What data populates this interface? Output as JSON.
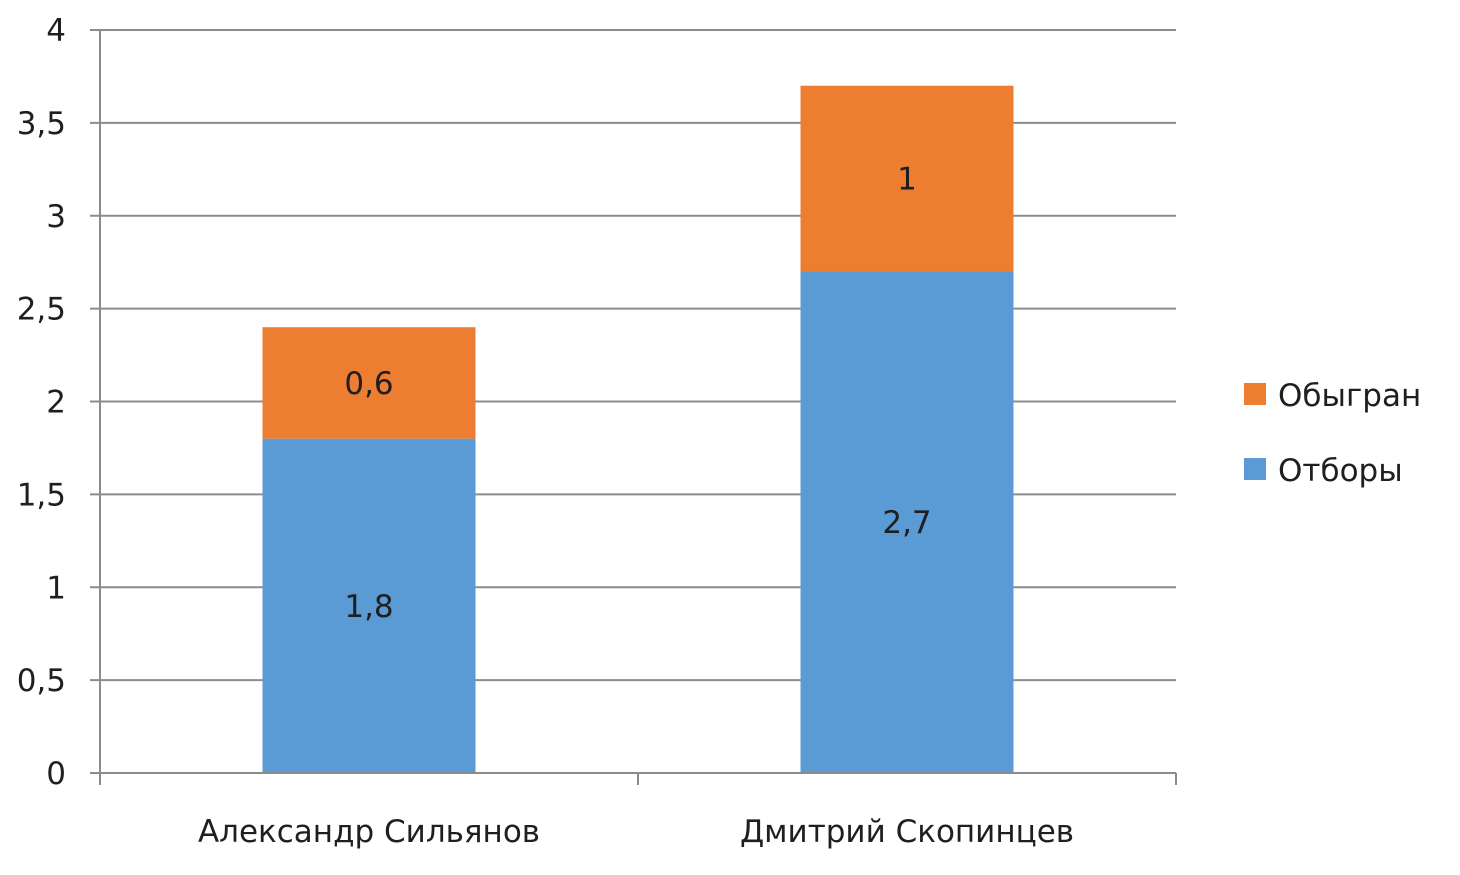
{
  "chart_data": {
    "type": "bar",
    "stacked": true,
    "title": "",
    "xlabel": "",
    "ylabel": "",
    "categories": [
      "Александр Сильянов",
      "Дмитрий Скопинцев"
    ],
    "series": [
      {
        "name": "Отборы",
        "values": [
          1.8,
          2.7
        ],
        "labels": [
          "1,8",
          "2,7"
        ],
        "color": "#5b9bd5"
      },
      {
        "name": "Обыгран",
        "values": [
          0.6,
          1
        ],
        "labels": [
          "0,6",
          "1"
        ],
        "color": "#ed7d31"
      }
    ],
    "ylim": [
      0,
      4
    ],
    "yticks": [
      0,
      0.5,
      1,
      1.5,
      2,
      2.5,
      3,
      3.5,
      4
    ],
    "ytick_labels": [
      "0",
      "0,5",
      "1",
      "1,5",
      "2",
      "2,5",
      "3",
      "3,5",
      "4"
    ],
    "grid": true,
    "legend": {
      "position": "right",
      "order": [
        "Обыгран",
        "Отборы"
      ]
    },
    "colors": {
      "gridline": "#8c8c8c",
      "axis": "#8c8c8c",
      "text": "#1f1f1f"
    }
  }
}
